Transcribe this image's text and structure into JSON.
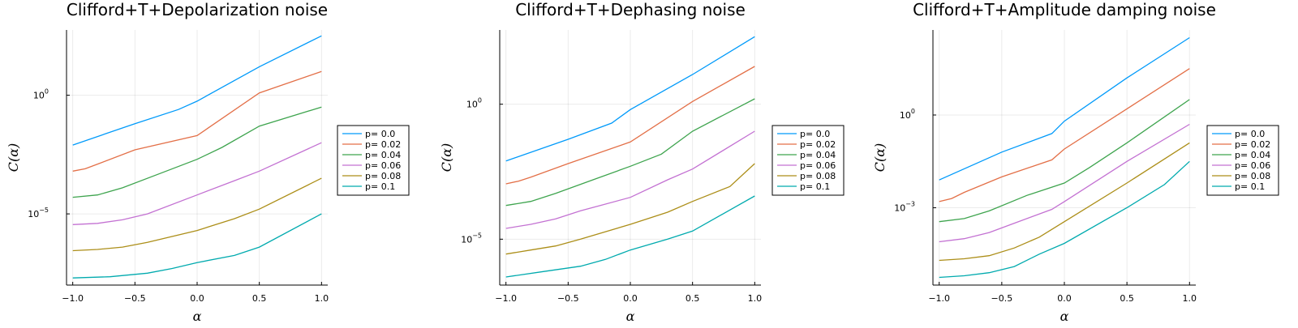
{
  "colors": [
    "#009AFA",
    "#E36F47",
    "#3EA44E",
    "#C371D2",
    "#AC8E18",
    "#00AAAE"
  ],
  "chart_data": [
    {
      "type": "line",
      "title": "Clifford+T+Depolarization noise",
      "xlabel": "α",
      "ylabel": "C(α)",
      "xlim": [
        -1.05,
        1.05
      ],
      "ylim_log10": [
        -8.0,
        2.75
      ],
      "yscale": "log",
      "grid": true,
      "legend": "outer-right",
      "x_ticks": [
        -1.0,
        -0.5,
        0.0,
        0.5,
        1.0
      ],
      "x_tick_labels": [
        "−1.0",
        "−0.5",
        "0.0",
        "0.5",
        "1.0"
      ],
      "y_ticks_log10": [
        0,
        -5
      ],
      "y_tick_labels": [
        "10^0",
        "10^−5"
      ],
      "series": [
        {
          "name": "p= 0.0",
          "x": [
            -1.0,
            -0.5,
            -0.15,
            0.0,
            0.5,
            1.0
          ],
          "log10_y": [
            -2.1,
            -1.2,
            -0.6,
            -0.25,
            1.2,
            2.5
          ]
        },
        {
          "name": "p= 0.02",
          "x": [
            -1.0,
            -0.9,
            -0.8,
            -0.5,
            0.0,
            0.5,
            1.0
          ],
          "log10_y": [
            -3.2,
            -3.1,
            -2.9,
            -2.3,
            -1.7,
            0.1,
            1.0
          ]
        },
        {
          "name": "p= 0.04",
          "x": [
            -1.0,
            -0.8,
            -0.6,
            -0.3,
            0.0,
            0.2,
            0.5,
            1.0
          ],
          "log10_y": [
            -4.3,
            -4.2,
            -3.9,
            -3.3,
            -2.7,
            -2.2,
            -1.3,
            -0.5
          ]
        },
        {
          "name": "p= 0.06",
          "x": [
            -1.0,
            -0.8,
            -0.6,
            -0.4,
            0.0,
            0.3,
            0.5,
            1.0
          ],
          "log10_y": [
            -5.45,
            -5.4,
            -5.25,
            -5.0,
            -4.2,
            -3.6,
            -3.2,
            -2.0
          ]
        },
        {
          "name": "p= 0.08",
          "x": [
            -1.0,
            -0.8,
            -0.6,
            -0.4,
            0.0,
            0.3,
            0.5,
            1.0
          ],
          "log10_y": [
            -6.55,
            -6.5,
            -6.4,
            -6.2,
            -5.7,
            -5.2,
            -4.8,
            -3.5
          ]
        },
        {
          "name": "p= 0.1",
          "x": [
            -1.0,
            -0.7,
            -0.4,
            -0.2,
            0.0,
            0.3,
            0.5,
            1.0
          ],
          "log10_y": [
            -7.7,
            -7.65,
            -7.5,
            -7.3,
            -7.05,
            -6.75,
            -6.4,
            -5.0
          ]
        }
      ]
    },
    {
      "type": "line",
      "title": "Clifford+T+Dephasing noise",
      "xlabel": "α",
      "ylabel": "C(α)",
      "xlim": [
        -1.05,
        1.05
      ],
      "ylim_log10": [
        -6.7,
        2.75
      ],
      "yscale": "log",
      "grid": true,
      "legend": "outer-right",
      "x_ticks": [
        -1.0,
        -0.5,
        0.0,
        0.5,
        1.0
      ],
      "x_tick_labels": [
        "−1.0",
        "−0.5",
        "0.0",
        "0.5",
        "1.0"
      ],
      "y_ticks_log10": [
        0,
        -5
      ],
      "y_tick_labels": [
        "10^0",
        "10^−5"
      ],
      "series": [
        {
          "name": "p= 0.0",
          "x": [
            -1.0,
            -0.5,
            -0.15,
            0.0,
            0.5,
            1.0
          ],
          "log10_y": [
            -2.1,
            -1.3,
            -0.7,
            -0.2,
            1.1,
            2.5
          ]
        },
        {
          "name": "p= 0.02",
          "x": [
            -1.0,
            -0.9,
            -0.8,
            -0.5,
            0.0,
            0.5,
            1.0
          ],
          "log10_y": [
            -2.95,
            -2.85,
            -2.7,
            -2.2,
            -1.4,
            0.1,
            1.4
          ]
        },
        {
          "name": "p= 0.04",
          "x": [
            -1.0,
            -0.8,
            -0.6,
            -0.3,
            0.0,
            0.25,
            0.5,
            1.0
          ],
          "log10_y": [
            -3.75,
            -3.6,
            -3.3,
            -2.8,
            -2.3,
            -1.85,
            -1.0,
            0.2
          ]
        },
        {
          "name": "p= 0.06",
          "x": [
            -1.0,
            -0.8,
            -0.6,
            -0.4,
            0.0,
            0.3,
            0.5,
            1.0
          ],
          "log10_y": [
            -4.6,
            -4.45,
            -4.25,
            -3.95,
            -3.45,
            -2.8,
            -2.4,
            -1.0
          ]
        },
        {
          "name": "p= 0.08",
          "x": [
            -1.0,
            -0.8,
            -0.6,
            -0.4,
            0.0,
            0.3,
            0.5,
            0.8,
            1.0
          ],
          "log10_y": [
            -5.55,
            -5.4,
            -5.25,
            -5.0,
            -4.45,
            -4.0,
            -3.6,
            -3.05,
            -2.2
          ]
        },
        {
          "name": "p= 0.1",
          "x": [
            -1.0,
            -0.7,
            -0.4,
            -0.2,
            0.0,
            0.3,
            0.5,
            1.0
          ],
          "log10_y": [
            -6.4,
            -6.2,
            -6.0,
            -5.75,
            -5.4,
            -5.0,
            -4.7,
            -3.4
          ]
        }
      ]
    },
    {
      "type": "line",
      "title": "Clifford+T+Amplitude damping noise",
      "xlabel": "α",
      "ylabel": "C(α)",
      "xlim": [
        -1.05,
        1.05
      ],
      "ylim_log10": [
        -5.5,
        2.75
      ],
      "yscale": "log",
      "grid": true,
      "legend": "outer-right",
      "x_ticks": [
        -1.0,
        -0.5,
        0.0,
        0.5,
        1.0
      ],
      "x_tick_labels": [
        "−1.0",
        "−0.5",
        "0.0",
        "0.5",
        "1.0"
      ],
      "y_ticks_log10": [
        0,
        -3
      ],
      "y_tick_labels": [
        "10^0",
        "10^−3"
      ],
      "series": [
        {
          "name": "p= 0.0",
          "x": [
            -1.0,
            -0.5,
            -0.1,
            0.0,
            0.5,
            1.0
          ],
          "log10_y": [
            -2.1,
            -1.2,
            -0.6,
            -0.2,
            1.2,
            2.5
          ]
        },
        {
          "name": "p= 0.02",
          "x": [
            -1.0,
            -0.9,
            -0.8,
            -0.5,
            -0.1,
            0.0,
            0.5,
            1.0
          ],
          "log10_y": [
            -2.8,
            -2.7,
            -2.5,
            -2.0,
            -1.45,
            -1.1,
            0.2,
            1.5
          ]
        },
        {
          "name": "p= 0.04",
          "x": [
            -1.0,
            -0.8,
            -0.6,
            -0.3,
            0.0,
            0.2,
            0.5,
            1.0
          ],
          "log10_y": [
            -3.45,
            -3.35,
            -3.1,
            -2.6,
            -2.2,
            -1.7,
            -0.9,
            0.5
          ]
        },
        {
          "name": "p= 0.06",
          "x": [
            -1.0,
            -0.8,
            -0.6,
            -0.4,
            -0.1,
            0.0,
            0.5,
            1.0
          ],
          "log10_y": [
            -4.1,
            -4.0,
            -3.8,
            -3.5,
            -3.05,
            -2.8,
            -1.5,
            -0.3
          ]
        },
        {
          "name": "p= 0.08",
          "x": [
            -1.0,
            -0.8,
            -0.6,
            -0.4,
            -0.2,
            0.0,
            0.5,
            1.0
          ],
          "log10_y": [
            -4.7,
            -4.65,
            -4.55,
            -4.3,
            -3.95,
            -3.45,
            -2.2,
            -0.9
          ]
        },
        {
          "name": "p= 0.1",
          "x": [
            -1.0,
            -0.8,
            -0.6,
            -0.4,
            -0.2,
            0.0,
            0.5,
            0.8,
            1.0
          ],
          "log10_y": [
            -5.25,
            -5.2,
            -5.1,
            -4.9,
            -4.5,
            -4.15,
            -3.0,
            -2.25,
            -1.5
          ]
        }
      ]
    }
  ]
}
